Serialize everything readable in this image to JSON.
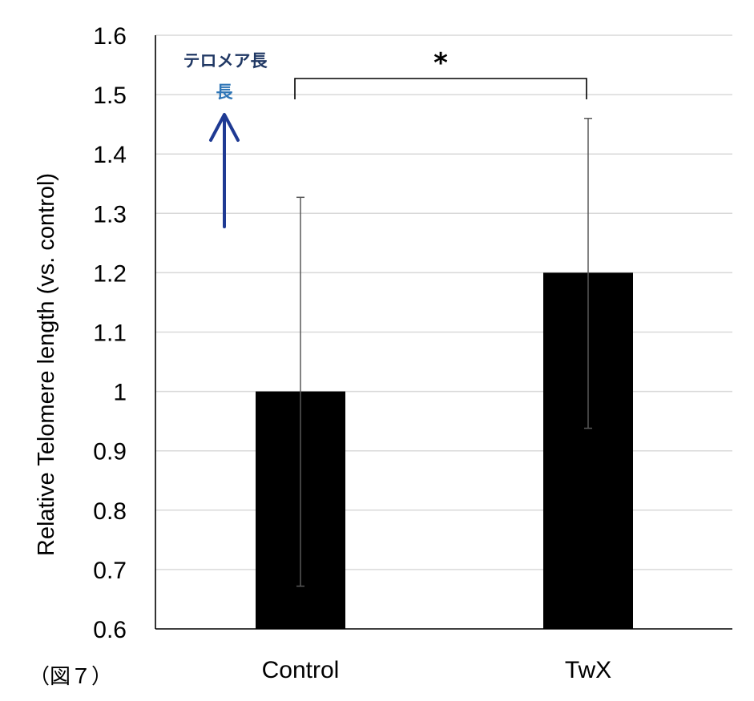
{
  "chart_data": {
    "type": "bar",
    "categories": [
      "Control",
      "TwX"
    ],
    "values": [
      1.0,
      1.2
    ],
    "error_upper": [
      1.327,
      1.46
    ],
    "error_lower": [
      0.672,
      0.938
    ],
    "title": "",
    "xlabel": "",
    "ylabel": "Relative Telomere length (vs. control)",
    "ylim": [
      0.6,
      1.6
    ],
    "yticks": [
      "0.6",
      "0.7",
      "0.8",
      "0.9",
      "1",
      "1.1",
      "1.2",
      "1.3",
      "1.4",
      "1.5",
      "1.6"
    ],
    "ytick_values": [
      0.6,
      0.7,
      0.8,
      0.9,
      1.0,
      1.1,
      1.2,
      1.3,
      1.4,
      1.5,
      1.6
    ],
    "grid": true,
    "significance": {
      "between": [
        "Control",
        "TwX"
      ],
      "label": "*"
    },
    "annotation": {
      "title": "テロメア長",
      "subtitle": "長",
      "arrow": "up"
    },
    "figure_label": "（図７）"
  },
  "colors": {
    "bar": "#000000",
    "grid": "#d9d9d9",
    "axis": "#000000",
    "error_bar": "#595959",
    "annotation_title": "#203864",
    "annotation_subtitle": "#2e75b6",
    "arrow": "#1f3a93"
  }
}
